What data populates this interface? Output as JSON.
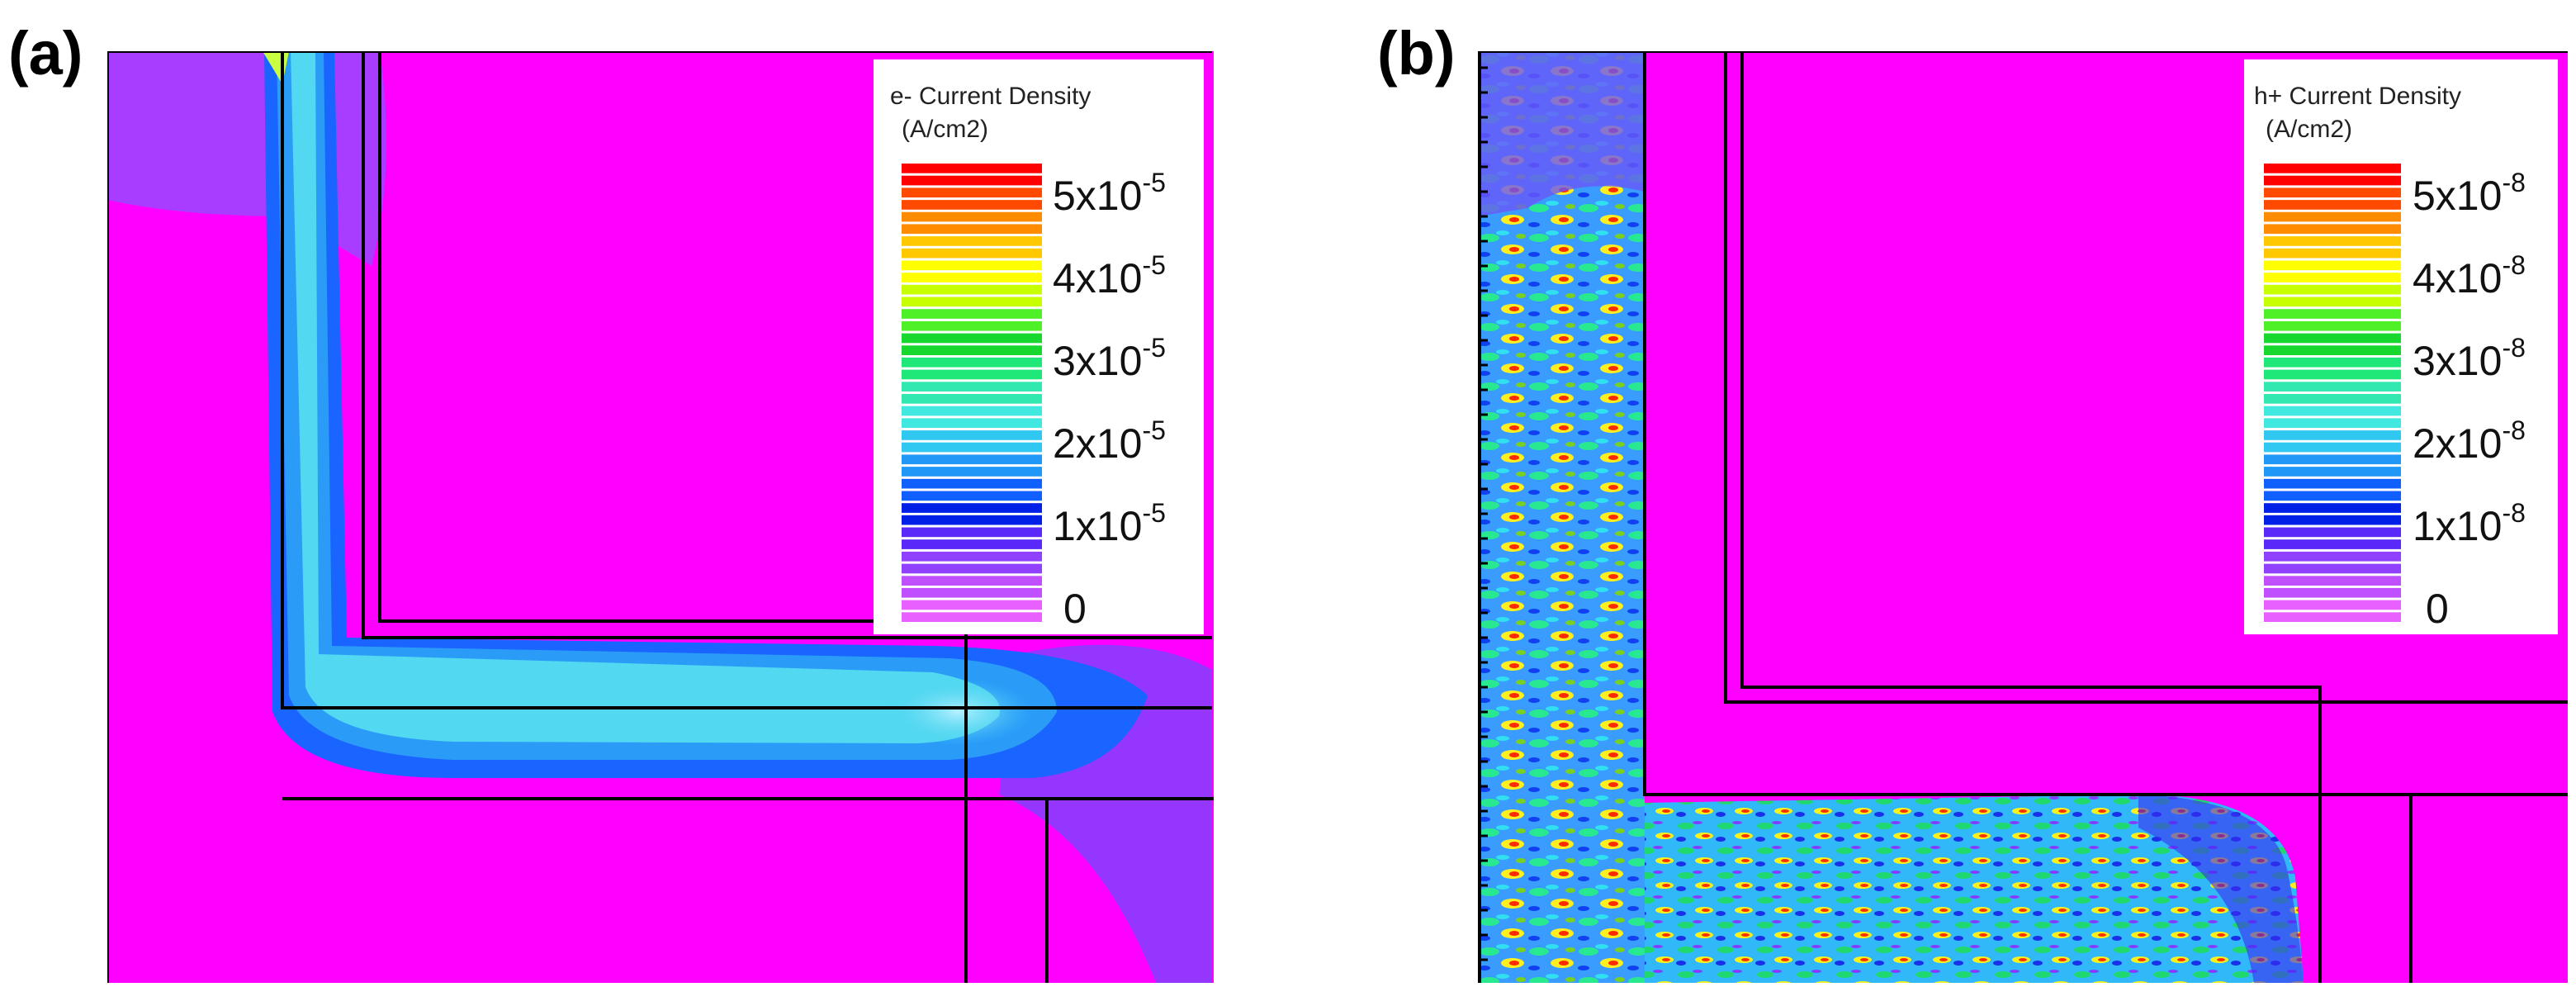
{
  "panels": [
    {
      "id": "a",
      "label": "(a)",
      "legend": {
        "title_line1": "e- Current Density",
        "title_line2": "(A/cm2)",
        "ticks": [
          {
            "mant": "5x10",
            "exp": "-5"
          },
          {
            "mant": "4x10",
            "exp": "-5"
          },
          {
            "mant": "3x10",
            "exp": "-5"
          },
          {
            "mant": "2x10",
            "exp": "-5"
          },
          {
            "mant": "1x10",
            "exp": "-5"
          },
          {
            "mant": "0",
            "exp": ""
          }
        ]
      }
    },
    {
      "id": "b",
      "label": "(b)",
      "legend": {
        "title_line1": "h+ Current Density",
        "title_line2": "(A/cm2)",
        "ticks": [
          {
            "mant": "5x10",
            "exp": "-8"
          },
          {
            "mant": "4x10",
            "exp": "-8"
          },
          {
            "mant": "3x10",
            "exp": "-8"
          },
          {
            "mant": "2x10",
            "exp": "-8"
          },
          {
            "mant": "1x10",
            "exp": "-8"
          },
          {
            "mant": "0",
            "exp": ""
          }
        ]
      }
    }
  ],
  "colors": {
    "background_magenta": "#ff00ff",
    "region_purple": "#8f3bff",
    "channel_blue": "#1e90ff",
    "channel_cyan": "#40e0e8",
    "outline": "#000000",
    "legend_scale": [
      "#ff0000",
      "#ff4a00",
      "#ff8c00",
      "#ffc800",
      "#ffff00",
      "#c8ff00",
      "#50f028",
      "#18d830",
      "#20e878",
      "#30e8b0",
      "#40e8e0",
      "#30c8f0",
      "#2098f8",
      "#1060ff",
      "#0020e8",
      "#5a28f8",
      "#9040ff",
      "#c050ff",
      "#e860ff"
    ]
  }
}
